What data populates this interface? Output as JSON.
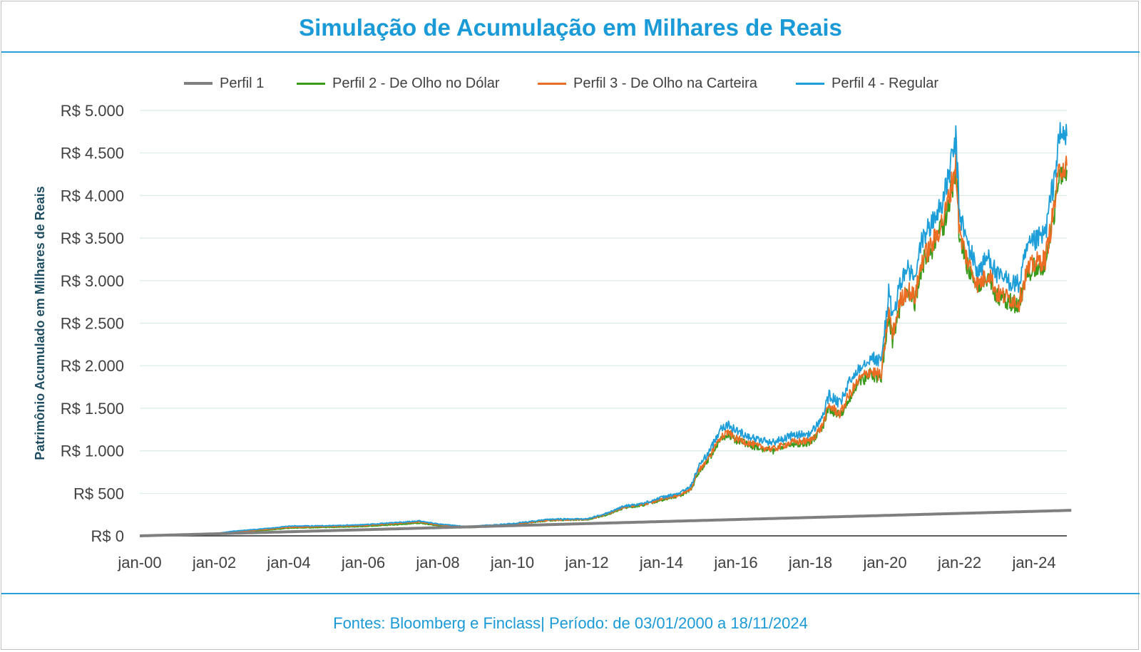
{
  "title": "Simulação de Acumulação em Milhares de Reais",
  "footer": "Fontes: Bloomberg e Finclass|  Período: de 03/01/2000 a 18/11/2024",
  "colors": {
    "title": "#1a9ad6",
    "perfil1": "#7f7f7f",
    "perfil2": "#3a9b1a",
    "perfil3": "#ec6c24",
    "perfil4": "#1e9ed8",
    "grid": "#d9ece9"
  },
  "chart_data": {
    "type": "line",
    "title": "Simulação de Acumulação em Milhares de Reais",
    "xlabel": "",
    "ylabel": "Patrimônio Acumulado em Milhares de Reais",
    "ylim": [
      0,
      5000
    ],
    "xlim": [
      "2000-01-03",
      "2024-11-18"
    ],
    "grid": true,
    "legend_position": "top",
    "y_ticks": [
      0,
      500,
      1000,
      1500,
      2000,
      2500,
      3000,
      3500,
      4000,
      4500,
      5000
    ],
    "y_tick_labels": [
      "R$ 0",
      "R$ 500",
      "R$ 1.000",
      "R$ 1.500",
      "R$ 2.000",
      "R$ 2.500",
      "R$ 3.000",
      "R$ 3.500",
      "R$ 4.000",
      "R$ 4.500",
      "R$ 5.000"
    ],
    "x_tick_labels": [
      "jan-00",
      "jan-02",
      "jan-04",
      "jan-06",
      "jan-08",
      "jan-10",
      "jan-12",
      "jan-14",
      "jan-16",
      "jan-18",
      "jan-20",
      "jan-22",
      "jan-24"
    ],
    "x_tick_values": [
      2000,
      2002,
      2004,
      2006,
      2008,
      2010,
      2012,
      2014,
      2016,
      2018,
      2020,
      2022,
      2024
    ],
    "series": [
      {
        "name": "Perfil 1",
        "x": [
          2000.0,
          2025.0
        ],
        "values": [
          0,
          300
        ]
      },
      {
        "name": "Perfil 2 - De Olho no Dólar",
        "x": [
          2000.0,
          2001.0,
          2002.0,
          2002.5,
          2003.5,
          2004.0,
          2005.0,
          2006.0,
          2007.0,
          2007.5,
          2008.0,
          2008.8,
          2009.5,
          2010.0,
          2011.0,
          2012.0,
          2012.5,
          2013.0,
          2013.5,
          2014.0,
          2014.5,
          2014.8,
          2015.0,
          2015.3,
          2015.6,
          2015.8,
          2016.0,
          2016.3,
          2016.6,
          2017.0,
          2017.5,
          2018.0,
          2018.3,
          2018.5,
          2018.8,
          2019.0,
          2019.3,
          2019.6,
          2019.9,
          2020.1,
          2020.2,
          2020.4,
          2020.6,
          2020.8,
          2021.0,
          2021.3,
          2021.6,
          2021.9,
          2022.0,
          2022.2,
          2022.5,
          2022.8,
          2023.0,
          2023.3,
          2023.6,
          2023.8,
          2024.0,
          2024.3,
          2024.5,
          2024.7,
          2024.88
        ],
        "values": [
          0,
          10,
          20,
          40,
          70,
          90,
          100,
          110,
          135,
          150,
          120,
          95,
          115,
          130,
          180,
          190,
          240,
          330,
          360,
          420,
          470,
          550,
          750,
          920,
          1150,
          1200,
          1120,
          1080,
          1030,
          1000,
          1080,
          1100,
          1250,
          1500,
          1400,
          1600,
          1800,
          1900,
          1850,
          2600,
          2300,
          2700,
          2850,
          2750,
          3200,
          3400,
          3700,
          4300,
          3500,
          3200,
          2900,
          3050,
          2800,
          2750,
          2700,
          3050,
          3150,
          3200,
          3700,
          4300,
          4300
        ]
      },
      {
        "name": "Perfil 3 - De Olho na Carteira",
        "x": [
          2000.0,
          2001.0,
          2002.0,
          2002.5,
          2003.5,
          2004.0,
          2005.0,
          2006.0,
          2007.0,
          2007.5,
          2008.0,
          2008.8,
          2009.5,
          2010.0,
          2011.0,
          2012.0,
          2012.5,
          2013.0,
          2013.5,
          2014.0,
          2014.5,
          2014.8,
          2015.0,
          2015.3,
          2015.6,
          2015.8,
          2016.0,
          2016.3,
          2016.6,
          2017.0,
          2017.5,
          2018.0,
          2018.3,
          2018.5,
          2018.8,
          2019.0,
          2019.3,
          2019.6,
          2019.9,
          2020.1,
          2020.2,
          2020.4,
          2020.6,
          2020.8,
          2021.0,
          2021.3,
          2021.6,
          2021.9,
          2022.0,
          2022.2,
          2022.5,
          2022.8,
          2023.0,
          2023.3,
          2023.6,
          2023.8,
          2024.0,
          2024.3,
          2024.5,
          2024.7,
          2024.88
        ],
        "values": [
          0,
          12,
          22,
          45,
          80,
          100,
          110,
          120,
          150,
          165,
          130,
          100,
          120,
          135,
          185,
          195,
          250,
          340,
          365,
          430,
          480,
          560,
          770,
          940,
          1180,
          1220,
          1140,
          1100,
          1050,
          1020,
          1100,
          1120,
          1280,
          1530,
          1430,
          1630,
          1830,
          1940,
          1880,
          2650,
          2350,
          2750,
          2900,
          2800,
          3250,
          3450,
          3760,
          4360,
          3560,
          3250,
          2950,
          3100,
          2850,
          2800,
          2750,
          3100,
          3200,
          3250,
          3750,
          4350,
          4350
        ]
      },
      {
        "name": "Perfil 4 - Regular",
        "x": [
          2000.0,
          2001.0,
          2002.0,
          2002.5,
          2003.5,
          2004.0,
          2005.0,
          2006.0,
          2007.0,
          2007.5,
          2008.0,
          2008.8,
          2009.5,
          2010.0,
          2011.0,
          2012.0,
          2012.5,
          2013.0,
          2013.5,
          2014.0,
          2014.5,
          2014.8,
          2015.0,
          2015.3,
          2015.6,
          2015.8,
          2016.0,
          2016.3,
          2016.6,
          2017.0,
          2017.5,
          2018.0,
          2018.3,
          2018.5,
          2018.8,
          2019.0,
          2019.3,
          2019.6,
          2019.9,
          2020.1,
          2020.2,
          2020.4,
          2020.6,
          2020.8,
          2021.0,
          2021.3,
          2021.6,
          2021.9,
          2022.0,
          2022.2,
          2022.5,
          2022.8,
          2023.0,
          2023.3,
          2023.6,
          2023.8,
          2024.0,
          2024.3,
          2024.5,
          2024.7,
          2024.88
        ],
        "values": [
          0,
          15,
          25,
          55,
          90,
          115,
          120,
          130,
          160,
          175,
          140,
          110,
          130,
          145,
          195,
          200,
          260,
          350,
          380,
          450,
          500,
          590,
          820,
          1000,
          1280,
          1300,
          1240,
          1180,
          1130,
          1100,
          1180,
          1200,
          1380,
          1650,
          1550,
          1770,
          1980,
          2100,
          2050,
          2870,
          2550,
          2950,
          3150,
          3000,
          3500,
          3700,
          4000,
          4650,
          3800,
          3450,
          3100,
          3300,
          3050,
          3000,
          2950,
          3350,
          3450,
          3550,
          4100,
          4700,
          4700
        ]
      }
    ]
  },
  "legend": [
    {
      "label": "Perfil 1",
      "color": "#7f7f7f"
    },
    {
      "label": "Perfil 2 - De Olho no Dólar",
      "color": "#3a9b1a"
    },
    {
      "label": "Perfil 3 - De Olho na Carteira",
      "color": "#ec6c24"
    },
    {
      "label": "Perfil 4 - Regular",
      "color": "#1e9ed8"
    }
  ]
}
